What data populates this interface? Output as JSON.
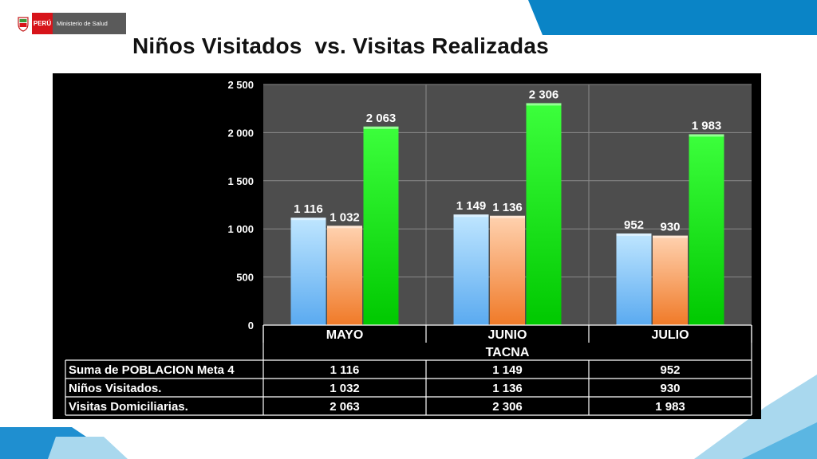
{
  "header": {
    "country_label": "PERÚ",
    "ministry_label": "Ministerio de Salud",
    "title": "Niños Visitados  vs. Visitas Realizadas"
  },
  "colors": {
    "chart_background": "#000000",
    "plot_background": "#4d4d4d",
    "series_1": "#5aaaf0",
    "series_2": "#f07a28",
    "series_3": "#00c800",
    "accent_blue": "#0a84c6"
  },
  "chart_data": {
    "type": "bar",
    "categories": [
      "MAYO",
      "JUNIO",
      "JULIO"
    ],
    "group_label": "TACNA",
    "ylim": [
      0,
      2500
    ],
    "yticks": [
      0,
      500,
      1000,
      1500,
      2000,
      2500
    ],
    "ytick_labels": [
      "0",
      "500",
      "1 000",
      "1 500",
      "2 000",
      "2 500"
    ],
    "grid": true,
    "series": [
      {
        "name": "Suma de POBLACION  Meta 4",
        "values": [
          1116,
          1149,
          952
        ],
        "labels": [
          "1 116",
          "1 149",
          "952"
        ]
      },
      {
        "name": "Niños Visitados.",
        "values": [
          1032,
          1136,
          930
        ],
        "labels": [
          "1 032",
          "1 136",
          "930"
        ]
      },
      {
        "name": "Visitas Domiciliarias.",
        "values": [
          2063,
          2306,
          1983
        ],
        "labels": [
          "2 063",
          "2 306",
          "1 983"
        ]
      }
    ]
  }
}
